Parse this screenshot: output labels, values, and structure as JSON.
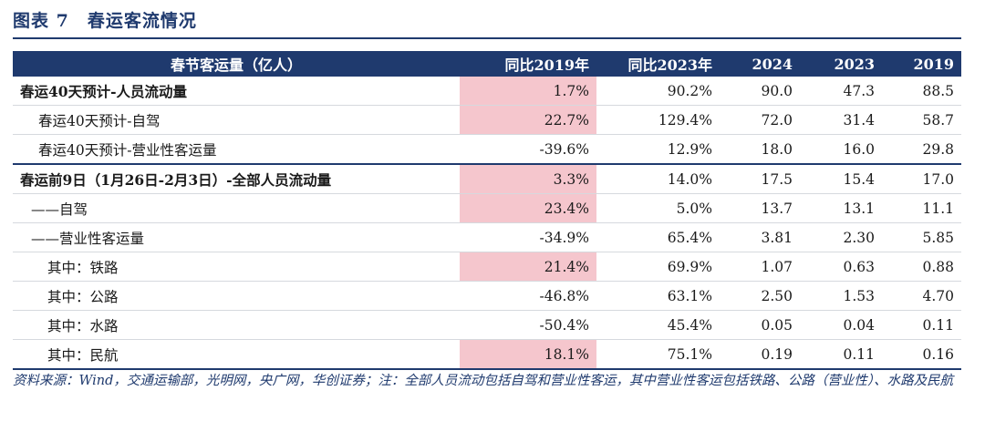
{
  "figure": {
    "title": "图表 7　春运客流情况"
  },
  "table": {
    "headers": [
      "春节客运量（亿人）",
      "同比2019年",
      "同比2023年",
      "2024",
      "2023",
      "2019"
    ],
    "rows": [
      {
        "label": "春运40天预计-人员流动量",
        "vs2019": "1.7%",
        "vs2023": "90.2%",
        "y2024": "90.0",
        "y2023": "47.3",
        "y2019": "88.5"
      },
      {
        "label": "春运40天预计-自驾",
        "vs2019": "22.7%",
        "vs2023": "129.4%",
        "y2024": "72.0",
        "y2023": "31.4",
        "y2019": "58.7"
      },
      {
        "label": "春运40天预计-营业性客运量",
        "vs2019": "-39.6%",
        "vs2023": "12.9%",
        "y2024": "18.0",
        "y2023": "16.0",
        "y2019": "29.8"
      },
      {
        "label": "春运前9日（1月26日-2月3日）-全部人员流动量",
        "vs2019": "3.3%",
        "vs2023": "14.0%",
        "y2024": "17.5",
        "y2023": "15.4",
        "y2019": "17.0"
      },
      {
        "label": "——自驾",
        "vs2019": "23.4%",
        "vs2023": "5.0%",
        "y2024": "13.7",
        "y2023": "13.1",
        "y2019": "11.1"
      },
      {
        "label": "——营业性客运量",
        "vs2019": "-34.9%",
        "vs2023": "65.4%",
        "y2024": "3.81",
        "y2023": "2.30",
        "y2019": "5.85"
      },
      {
        "label": "其中：铁路",
        "vs2019": "21.4%",
        "vs2023": "69.9%",
        "y2024": "1.07",
        "y2023": "0.63",
        "y2019": "0.88"
      },
      {
        "label": "其中：公路",
        "vs2019": "-46.8%",
        "vs2023": "63.1%",
        "y2024": "2.50",
        "y2023": "1.53",
        "y2019": "4.70"
      },
      {
        "label": "其中：水路",
        "vs2019": "-50.4%",
        "vs2023": "45.4%",
        "y2024": "0.05",
        "y2023": "0.04",
        "y2019": "0.11"
      },
      {
        "label": "其中：民航",
        "vs2019": "18.1%",
        "vs2023": "75.1%",
        "y2024": "0.19",
        "y2023": "0.11",
        "y2019": "0.16"
      }
    ]
  },
  "source_note": "资料来源：Wind，交通运输部，光明网，央广网，华创证券；注：全部人员流动包括自驾和营业性客运，其中营业性客运包括铁路、公路（营业性）、水路及民航",
  "colors": {
    "header_bg": "#1f3a6e",
    "highlight": "#f5c6cd",
    "title": "#1f3a6e"
  }
}
